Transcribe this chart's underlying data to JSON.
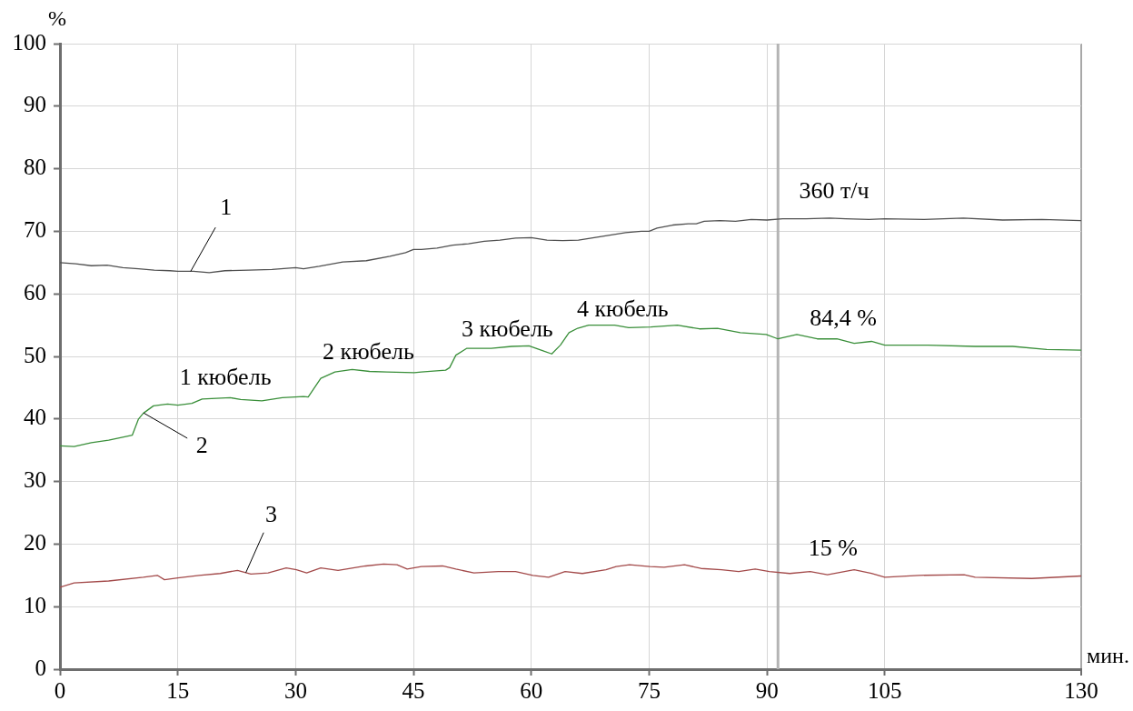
{
  "chart_data": {
    "type": "line",
    "xlabel": "мин.",
    "ylabel": "%",
    "xlim": [
      0,
      130
    ],
    "xticks": [
      0,
      15,
      30,
      45,
      60,
      75,
      90,
      105,
      130
    ],
    "ylim": [
      0,
      100
    ],
    "yticks": [
      0,
      10,
      20,
      30,
      40,
      50,
      60,
      70,
      80,
      90,
      100
    ],
    "grid": true,
    "legend": false,
    "marker": "none",
    "line_style": "solid",
    "series": [
      {
        "name": "1",
        "color": "#505050",
        "x": [
          0,
          2,
          4,
          6,
          8,
          10,
          12,
          14,
          15,
          17,
          19,
          21,
          24,
          27,
          30,
          31,
          33,
          36,
          39,
          42,
          44,
          45,
          46,
          48,
          50,
          51,
          52,
          54,
          56,
          58,
          60,
          62,
          64,
          66,
          68,
          70,
          72,
          74,
          75,
          76,
          78,
          80,
          81,
          82,
          84,
          86,
          88,
          90,
          92,
          95,
          98,
          100,
          103,
          105,
          110,
          115,
          120,
          125,
          130
        ],
        "values": [
          65.0,
          64.8,
          64.5,
          64.6,
          64.2,
          64.0,
          63.8,
          63.7,
          63.6,
          63.6,
          63.4,
          63.7,
          63.8,
          63.9,
          64.2,
          64.0,
          64.4,
          65.1,
          65.3,
          66.0,
          66.6,
          67.1,
          67.1,
          67.3,
          67.8,
          67.9,
          68.0,
          68.4,
          68.6,
          68.9,
          69.0,
          68.6,
          68.5,
          68.6,
          69.0,
          69.4,
          69.8,
          70.0,
          70.0,
          70.5,
          71.0,
          71.2,
          71.2,
          71.6,
          71.7,
          71.6,
          71.9,
          71.8,
          72.0,
          72.0,
          72.1,
          72.0,
          71.9,
          72.0,
          71.9,
          72.1,
          71.8,
          71.9,
          71.7
        ]
      },
      {
        "name": "2",
        "color": "#3a8f3a",
        "x": [
          0,
          1.8,
          4,
          6.2,
          8.8,
          9.2,
          10,
          10.6,
          11.9,
          13.7,
          15,
          16.8,
          18.1,
          21.7,
          23,
          25.7,
          28.3,
          31,
          31.6,
          33.2,
          35,
          37.2,
          39.4,
          41.6,
          45.1,
          46,
          49.1,
          49.6,
          50.4,
          51.8,
          54.9,
          57.5,
          59.7,
          61.5,
          62.6,
          63.7,
          64.8,
          65.9,
          67.3,
          70.6,
          72.4,
          75.2,
          78.6,
          81.4,
          83.7,
          86.6,
          89.9,
          91.4,
          93.8,
          96.4,
          98.9,
          101.1,
          103.3,
          105,
          110.5,
          116.5,
          121.3,
          125.6,
          130
        ],
        "values": [
          35.7,
          35.6,
          36.2,
          36.6,
          37.3,
          37.4,
          40.0,
          40.9,
          42.1,
          42.4,
          42.2,
          42.5,
          43.2,
          43.4,
          43.1,
          42.9,
          43.4,
          43.6,
          43.5,
          46.5,
          47.5,
          47.9,
          47.6,
          47.5,
          47.4,
          47.5,
          47.8,
          48.2,
          50.2,
          51.3,
          51.3,
          51.6,
          51.7,
          50.9,
          50.4,
          51.8,
          53.8,
          54.5,
          55.0,
          55.0,
          54.6,
          54.7,
          55.0,
          54.4,
          54.5,
          53.8,
          53.5,
          52.8,
          53.5,
          52.8,
          52.8,
          52.1,
          52.4,
          51.8,
          51.8,
          51.6,
          51.6,
          51.1,
          51.0
        ]
      },
      {
        "name": "3",
        "color": "#a34a4a",
        "x": [
          0,
          1.8,
          6.2,
          10.6,
          12.4,
          13.3,
          15,
          17.7,
          20.4,
          22.6,
          24.3,
          26.5,
          28.8,
          30.1,
          31.4,
          33.2,
          35.4,
          38.9,
          41.2,
          42.9,
          44.2,
          46,
          48.7,
          50.4,
          52.7,
          55.8,
          58,
          60.2,
          62.2,
          64.3,
          66.5,
          69.5,
          70.8,
          72.5,
          75.1,
          76.9,
          79.5,
          81.6,
          84.2,
          86.4,
          88.5,
          90.3,
          92.9,
          95.5,
          97.7,
          101.1,
          103.3,
          105,
          109.3,
          115.1,
          116.5,
          123.7,
          130
        ],
        "values": [
          13.1,
          13.8,
          14.1,
          14.7,
          15.0,
          14.3,
          14.6,
          15.0,
          15.3,
          15.8,
          15.2,
          15.4,
          16.2,
          15.9,
          15.4,
          16.2,
          15.8,
          16.5,
          16.8,
          16.7,
          16.0,
          16.4,
          16.5,
          16.0,
          15.4,
          15.6,
          15.6,
          15.0,
          14.7,
          15.6,
          15.3,
          15.9,
          16.4,
          16.7,
          16.4,
          16.3,
          16.7,
          16.1,
          15.9,
          15.6,
          16.0,
          15.6,
          15.3,
          15.6,
          15.1,
          15.9,
          15.3,
          14.7,
          15.0,
          15.1,
          14.7,
          14.5,
          14.9
        ]
      }
    ],
    "ref_lines": [
      {
        "axis": "x",
        "value": 91.4,
        "color": "#b4b4b4"
      }
    ],
    "annotations": [
      "1 кюбель",
      "2 кюбель",
      "3 кюбель",
      "4 кюбель",
      "360 т/ч",
      "84,4 %",
      "15 %"
    ]
  }
}
